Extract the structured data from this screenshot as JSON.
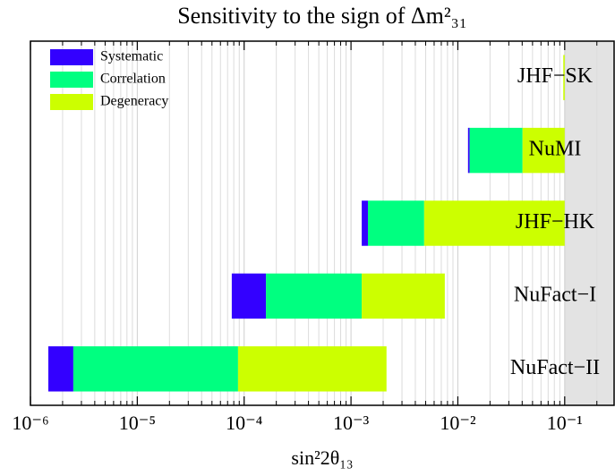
{
  "chart_data": {
    "type": "floating_bar",
    "title": "Sensitivity to the sign of Δm²₃₁",
    "x_label": "sin²2θ₁₃",
    "categories": [
      "JHF−SK",
      "NuMI",
      "JHF−HK",
      "NuFact−I",
      "NuFact−II"
    ],
    "series": [
      {
        "name": "Systematic",
        "color": "#3300ff",
        "values": [
          null,
          [
            0.01245,
            0.0129
          ],
          [
            0.00126,
            0.00144
          ],
          [
            7.66e-05,
            0.00016
          ],
          [
            1.47e-06,
            2.52e-06
          ]
        ]
      },
      {
        "name": "Correlation",
        "color": "#00ff80",
        "values": [
          null,
          [
            0.0129,
            0.0403
          ],
          [
            0.00144,
            0.00484
          ],
          [
            0.00016,
            0.00126
          ],
          [
            2.52e-06,
            8.77e-05
          ]
        ]
      },
      {
        "name": "Degeneracy",
        "color": "#ccff00",
        "values": [
          [
            0.097,
            0.1
          ],
          [
            0.0403,
            0.1
          ],
          [
            0.00484,
            0.1
          ],
          [
            0.00126,
            0.00755
          ],
          [
            8.77e-05,
            0.00215
          ]
        ]
      }
    ],
    "xscale": "log",
    "xlim": [
      1e-06,
      0.29
    ],
    "xticks": [
      {
        "value": 1e-06,
        "label": "10⁻⁶"
      },
      {
        "value": 1e-05,
        "label": "10⁻⁵"
      },
      {
        "value": 0.0001,
        "label": "10⁻⁴"
      },
      {
        "value": 0.001,
        "label": "10⁻³"
      },
      {
        "value": 0.01,
        "label": "10⁻²"
      },
      {
        "value": 0.1,
        "label": "10⁻¹"
      }
    ],
    "xminorticks": [
      2e-06,
      3e-06,
      4e-06,
      5e-06,
      6e-06,
      7e-06,
      8e-06,
      9e-06,
      2e-05,
      3e-05,
      4e-05,
      5e-05,
      6e-05,
      7e-05,
      8e-05,
      9e-05,
      0.0002,
      0.0003,
      0.0004,
      0.0005,
      0.0006,
      0.0007,
      0.0008,
      0.0009,
      0.002,
      0.003,
      0.004,
      0.005,
      0.006,
      0.007,
      0.008,
      0.009,
      0.02,
      0.03,
      0.04,
      0.05,
      0.06,
      0.07,
      0.08,
      0.09,
      0.2
    ],
    "shaded_region": [
      0.1,
      0.29
    ],
    "grid": true,
    "legend": "upper left"
  }
}
